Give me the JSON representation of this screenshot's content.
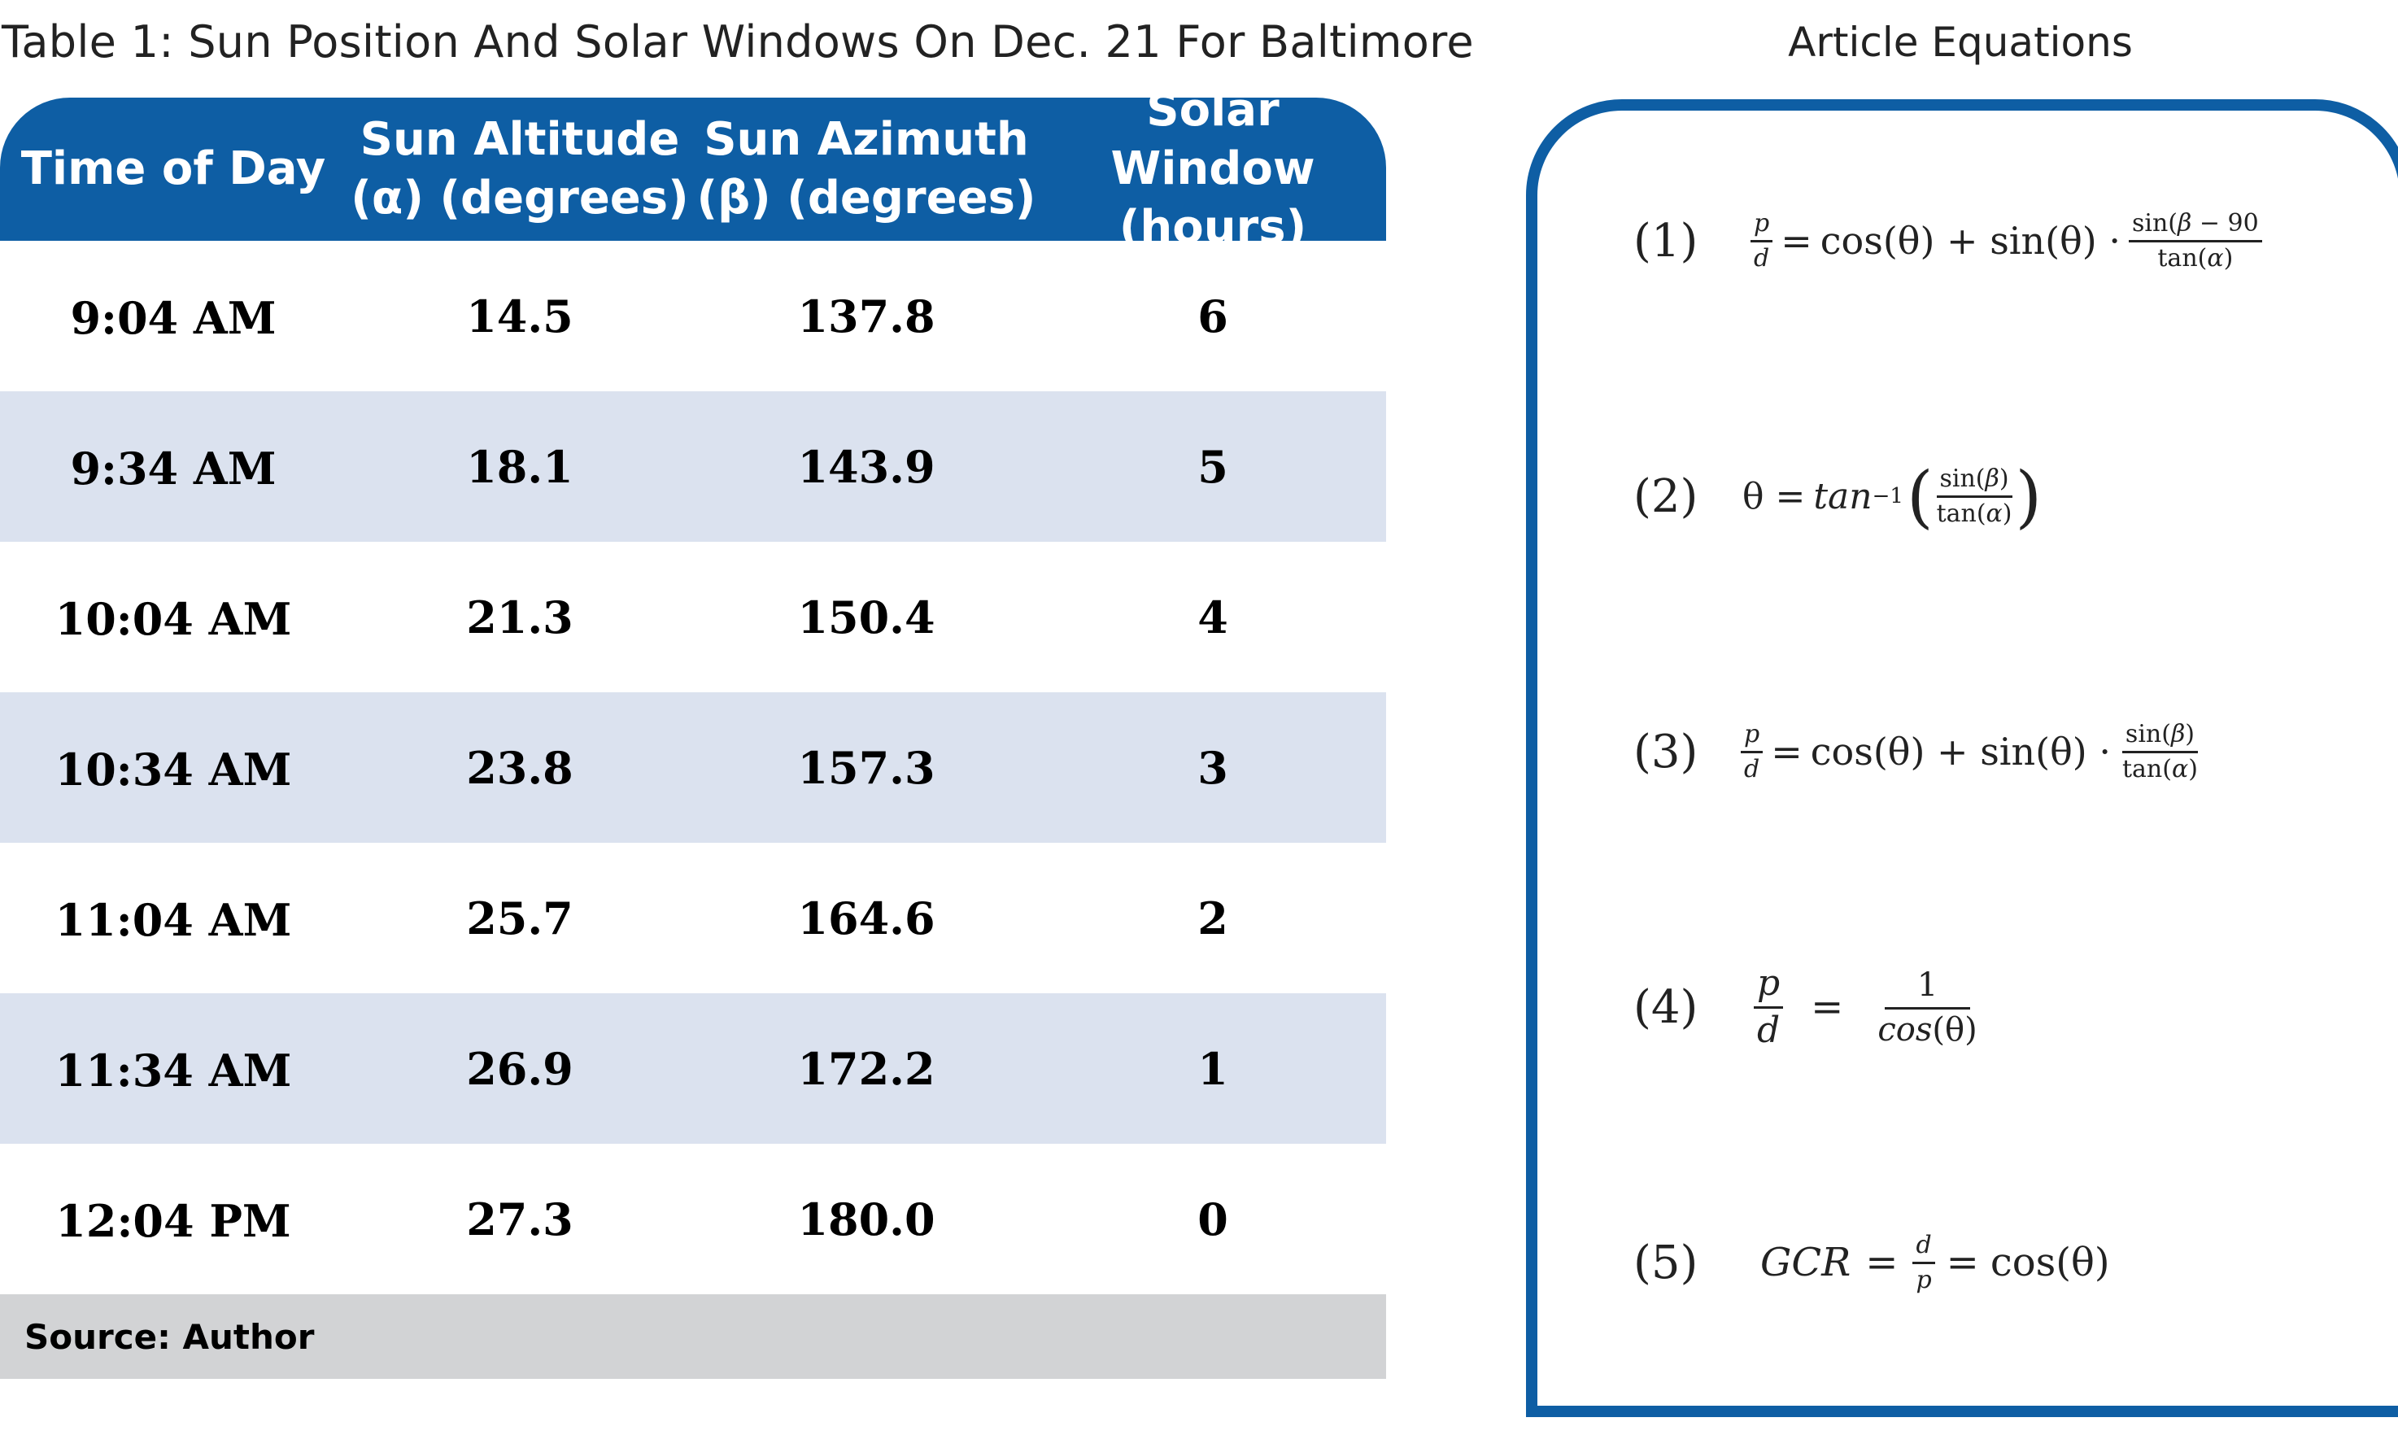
{
  "table": {
    "title": "Table 1: Sun Position And Solar Windows On Dec. 21 For Baltimore",
    "headers": [
      {
        "line1": "Time of Day",
        "line2": ""
      },
      {
        "line1": "Sun Altitude",
        "line2": "(α) (degrees)"
      },
      {
        "line1": "Sun Azimuth",
        "line2": "(β) (degrees)"
      },
      {
        "line1": "Solar Window",
        "line2": "(hours)"
      }
    ],
    "rows": [
      [
        "9:04 AM",
        "14.5",
        "137.8",
        "6"
      ],
      [
        "9:34 AM",
        "18.1",
        "143.9",
        "5"
      ],
      [
        "10:04 AM",
        "21.3",
        "150.4",
        "4"
      ],
      [
        "10:34 AM",
        "23.8",
        "157.3",
        "3"
      ],
      [
        "11:04 AM",
        "25.7",
        "164.6",
        "2"
      ],
      [
        "11:34 AM",
        "26.9",
        "172.2",
        "1"
      ],
      [
        "12:04 PM",
        "27.3",
        "180.0",
        "0"
      ]
    ],
    "source": "Source: Author"
  },
  "equations": {
    "title": "Article Equations",
    "items": [
      {
        "number": "(1)"
      },
      {
        "number": "(2)"
      },
      {
        "number": "(3)"
      },
      {
        "number": "(4)"
      },
      {
        "number": "(5)"
      }
    ]
  },
  "colors": {
    "header_blue": "#0e5ea4",
    "row_alt": "#dbe2ef",
    "source_bar": "#d2d3d5"
  }
}
